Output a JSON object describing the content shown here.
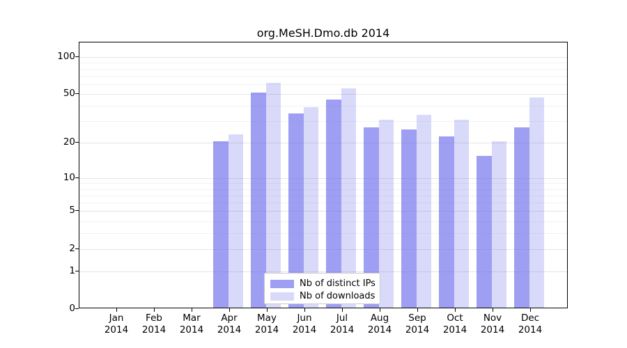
{
  "chart_data": {
    "type": "bar",
    "title": "org.MeSH.Dmo.db 2014",
    "categories": [
      "Jan",
      "Feb",
      "Mar",
      "Apr",
      "May",
      "Jun",
      "Jul",
      "Aug",
      "Sep",
      "Oct",
      "Nov",
      "Dec"
    ],
    "category_year": "2014",
    "series": [
      {
        "name": "Nb of distinct IPs",
        "color": "rgba(98,98,235,0.62)",
        "values": [
          0,
          0,
          0,
          20,
          50,
          34,
          44,
          26,
          25,
          22,
          15,
          26
        ]
      },
      {
        "name": "Nb of downloads",
        "color": "rgba(98,98,235,0.24)",
        "values": [
          0,
          0,
          0,
          23,
          60,
          38,
          54,
          30,
          33,
          30,
          20,
          46
        ]
      }
    ],
    "yscale": "log1p",
    "y_ticks": [
      0,
      1,
      2,
      5,
      10,
      20,
      50,
      100
    ],
    "y_minor_gridlines": [
      3,
      4,
      6,
      7,
      8,
      9,
      30,
      40,
      60,
      70,
      80,
      90
    ],
    "ylim": [
      0,
      130
    ],
    "grid": "on",
    "legend_position": "bottom-center",
    "axis_color": "#000000",
    "major_grid_color": "#e4e4e4",
    "minor_grid_color": "#f2f2f2"
  }
}
